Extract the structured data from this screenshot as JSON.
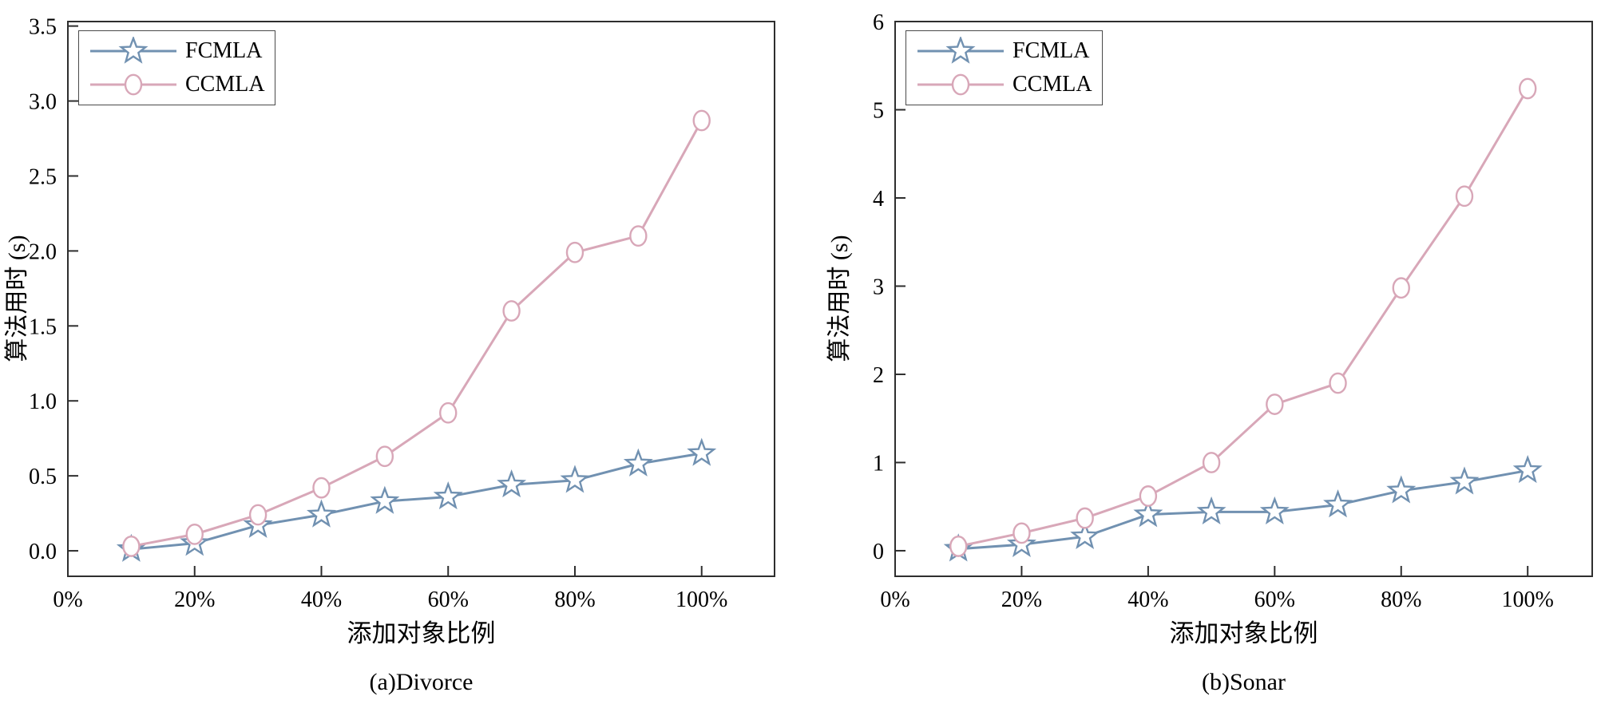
{
  "figure": {
    "background_color": "#ffffff",
    "axis_color": "#2e2e2e",
    "text_color": "#000000"
  },
  "chart_data": [
    {
      "type": "line",
      "title": "(a)Divorce",
      "xlabel": "添加对象比例",
      "ylabel": "算法用时 (s)",
      "x": [
        10,
        20,
        30,
        40,
        50,
        60,
        70,
        80,
        90,
        100
      ],
      "x_tick_values": [
        0,
        20,
        40,
        60,
        80,
        100
      ],
      "x_tick_labels": [
        "0%",
        "20%",
        "40%",
        "60%",
        "80%",
        "100%"
      ],
      "y_tick_values": [
        0,
        0.5,
        1,
        1.5,
        2,
        2.5,
        3,
        3.5
      ],
      "y_tick_labels": [
        "0.0",
        "0.5",
        "1.0",
        "1.5",
        "2.0",
        "2.5",
        "3.0",
        "3.5"
      ],
      "ylim": [
        0,
        3.5
      ],
      "grid": false,
      "legend_position": "upper-left",
      "series": [
        {
          "name": "FCMLA",
          "marker": "star",
          "color": "#7191b1",
          "values": [
            0.01,
            0.05,
            0.17,
            0.24,
            0.33,
            0.36,
            0.44,
            0.47,
            0.58,
            0.65
          ]
        },
        {
          "name": "CCMLA",
          "marker": "circle",
          "color": "#d8a7b8",
          "values": [
            0.03,
            0.11,
            0.24,
            0.42,
            0.63,
            0.92,
            1.6,
            1.99,
            2.1,
            2.87
          ]
        }
      ]
    },
    {
      "type": "line",
      "title": "(b)Sonar",
      "xlabel": "添加对象比例",
      "ylabel": "算法用时 (s)",
      "x": [
        10,
        20,
        30,
        40,
        50,
        60,
        70,
        80,
        90,
        100
      ],
      "x_tick_values": [
        0,
        20,
        40,
        60,
        80,
        100
      ],
      "x_tick_labels": [
        "0%",
        "20%",
        "40%",
        "60%",
        "80%",
        "100%"
      ],
      "y_tick_values": [
        0,
        1,
        2,
        3,
        4,
        5,
        6
      ],
      "y_tick_labels": [
        "0",
        "1",
        "2",
        "3",
        "4",
        "5",
        "6"
      ],
      "ylim": [
        0,
        6
      ],
      "grid": false,
      "legend_position": "upper-left",
      "series": [
        {
          "name": "FCMLA",
          "marker": "star",
          "color": "#7191b1",
          "values": [
            0.02,
            0.07,
            0.16,
            0.41,
            0.44,
            0.44,
            0.52,
            0.68,
            0.78,
            0.91
          ]
        },
        {
          "name": "CCMLA",
          "marker": "circle",
          "color": "#d8a7b8",
          "values": [
            0.05,
            0.2,
            0.37,
            0.62,
            1.0,
            1.66,
            1.9,
            2.98,
            4.02,
            5.24
          ]
        }
      ]
    }
  ]
}
